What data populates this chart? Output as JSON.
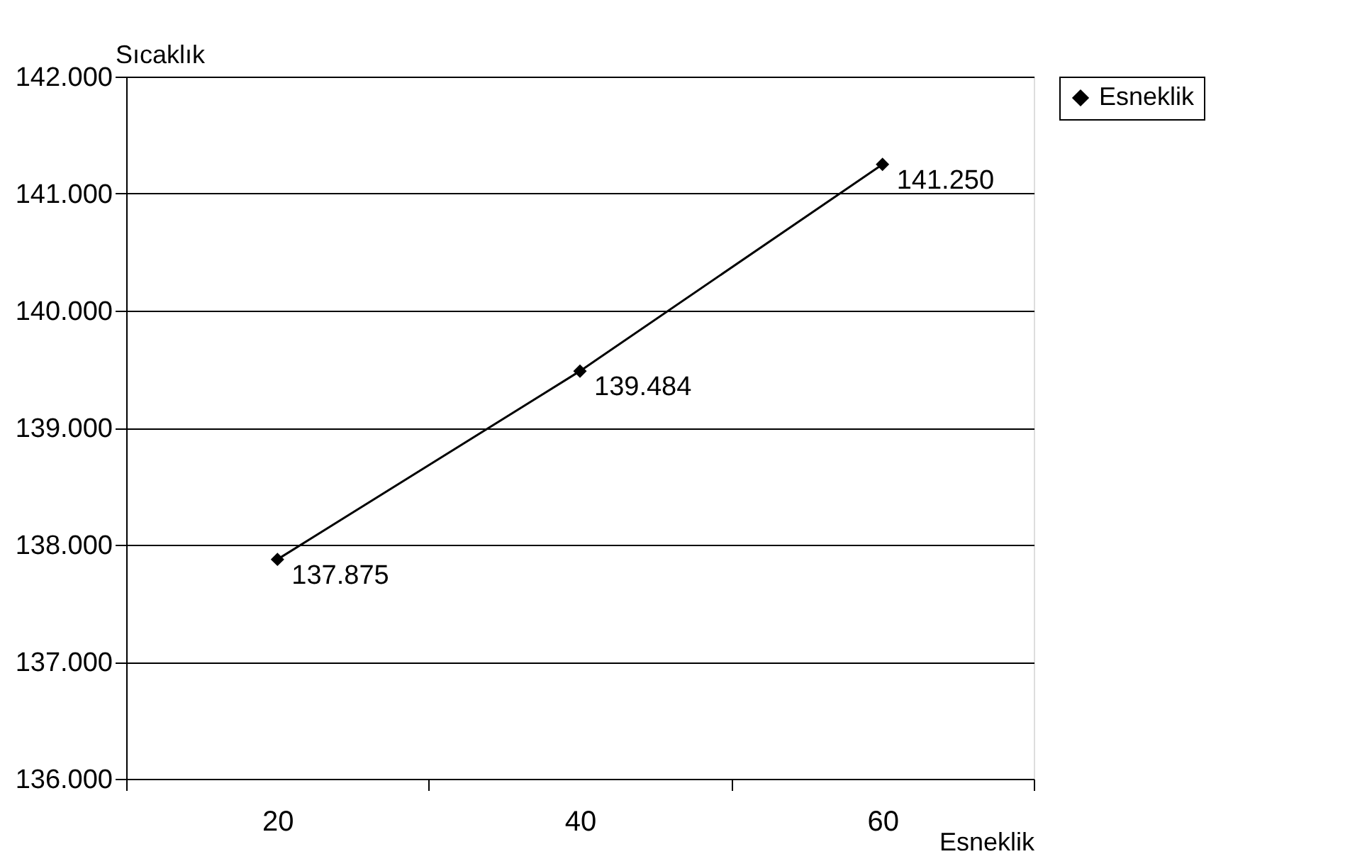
{
  "chart_data": {
    "type": "line",
    "xlabel": "Esneklik",
    "ylabel": "Sıcaklık",
    "categories": [
      "20",
      "40",
      "60"
    ],
    "series": [
      {
        "name": "Esneklik",
        "color": "#000000",
        "values": [
          137.875,
          139.484,
          141.25
        ],
        "value_labels": [
          "137.875",
          "139.484",
          "141.250"
        ]
      }
    ],
    "ylim": [
      136,
      142
    ],
    "yticks": [
      {
        "value": 136,
        "label": "136.000"
      },
      {
        "value": 137,
        "label": "137.000"
      },
      {
        "value": 138,
        "label": "138.000"
      },
      {
        "value": 139,
        "label": "139.000"
      },
      {
        "value": 140,
        "label": "140.000"
      },
      {
        "value": 141,
        "label": "141.000"
      },
      {
        "value": 142,
        "label": "142.000"
      }
    ],
    "grid": "y",
    "legend": "right",
    "marker": "diamond",
    "line_style": "solid"
  }
}
